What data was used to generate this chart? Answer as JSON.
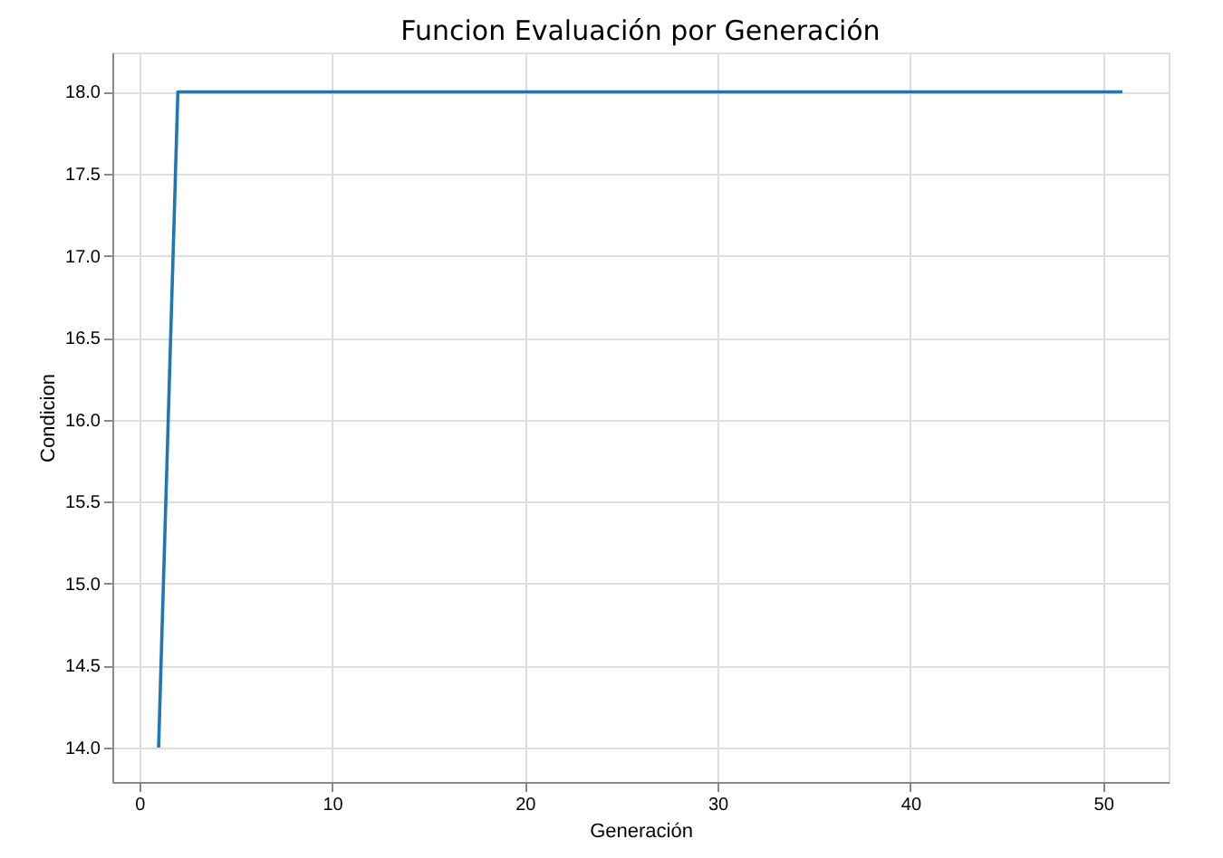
{
  "chart_data": {
    "type": "line",
    "title": "Funcion Evaluación por Generación",
    "xlabel": "Generación",
    "ylabel": "Condicion",
    "x": [
      1,
      2,
      51
    ],
    "series": [
      {
        "color": "#1f77b4",
        "values": [
          14.0,
          18.0,
          18.0
        ]
      }
    ],
    "xlim": [
      -1.4,
      53.4
    ],
    "xticks": [
      0,
      10,
      20,
      30,
      40,
      50
    ],
    "ylim": [
      13.79,
      18.24
    ],
    "yticks": [
      {
        "value": 14,
        "label": "14.0"
      },
      14.5,
      {
        "value": 15,
        "label": "15.0"
      },
      15.5,
      {
        "value": 16,
        "label": "16.0"
      },
      16.5,
      {
        "value": 17,
        "label": "17.0"
      },
      17.5,
      {
        "value": 18,
        "label": "18.0"
      }
    ],
    "grid": true,
    "marker": "none",
    "line_style": "solid",
    "legend": false
  }
}
